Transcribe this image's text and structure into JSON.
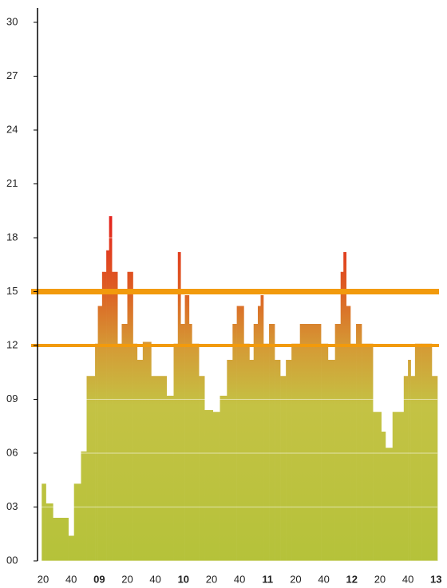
{
  "chart_data": {
    "type": "step-area",
    "x": [
      499,
      502,
      507,
      518,
      522,
      527,
      531,
      537,
      539,
      542,
      545,
      547,
      549,
      553,
      556,
      560,
      564,
      567,
      571,
      577,
      588,
      593,
      596,
      598,
      601,
      604,
      606,
      611,
      615,
      621,
      626,
      631,
      635,
      638,
      643,
      647,
      650,
      653,
      655,
      657,
      661,
      665,
      669,
      673,
      677,
      683,
      698,
      703,
      708,
      712,
      714,
      716,
      719,
      723,
      727,
      735,
      741,
      744,
      749,
      757,
      760,
      762,
      765,
      770,
      777
    ],
    "values": [
      4.3,
      3.2,
      2.4,
      1.4,
      4.3,
      6.1,
      10.3,
      12.1,
      14.2,
      16.1,
      17.3,
      19.2,
      16.1,
      12.1,
      13.2,
      16.1,
      12.1,
      11.2,
      12.2,
      10.3,
      9.2,
      12.1,
      17.2,
      13.2,
      14.8,
      13.2,
      12.1,
      10.3,
      8.4,
      8.3,
      9.2,
      11.2,
      13.2,
      14.2,
      12.1,
      11.2,
      13.2,
      14.2,
      14.8,
      12.1,
      13.2,
      11.2,
      10.3,
      11.2,
      12.1,
      13.2,
      12.1,
      11.2,
      13.2,
      16.1,
      17.2,
      14.2,
      12.1,
      13.2,
      12.1,
      8.3,
      7.2,
      6.3,
      8.3,
      10.3,
      11.2,
      10.3,
      12.1,
      12.1,
      10.3
    ],
    "xlim": [
      496,
      781
    ],
    "xticks": [
      {
        "value": 500,
        "label": "20"
      },
      {
        "value": 520,
        "label": "40"
      },
      {
        "value": 540,
        "label": "09"
      },
      {
        "value": 560,
        "label": "20"
      },
      {
        "value": 580,
        "label": "40"
      },
      {
        "value": 600,
        "label": "10"
      },
      {
        "value": 620,
        "label": "20"
      },
      {
        "value": 640,
        "label": "40"
      },
      {
        "value": 660,
        "label": "11"
      },
      {
        "value": 680,
        "label": "20"
      },
      {
        "value": 700,
        "label": "40"
      },
      {
        "value": 720,
        "label": "12"
      },
      {
        "value": 740,
        "label": "20"
      },
      {
        "value": 760,
        "label": "40"
      },
      {
        "value": 780,
        "label": "13"
      }
    ],
    "ylim": [
      0,
      30
    ],
    "yticks": [
      {
        "value": 0,
        "label": "00"
      },
      {
        "value": 3,
        "label": "03"
      },
      {
        "value": 6,
        "label": "06"
      },
      {
        "value": 9,
        "label": "09"
      },
      12,
      15,
      18,
      21,
      24,
      27,
      30
    ],
    "grid": true,
    "reference_lines": [
      15,
      12
    ],
    "reference_color": "#f29a0c"
  }
}
